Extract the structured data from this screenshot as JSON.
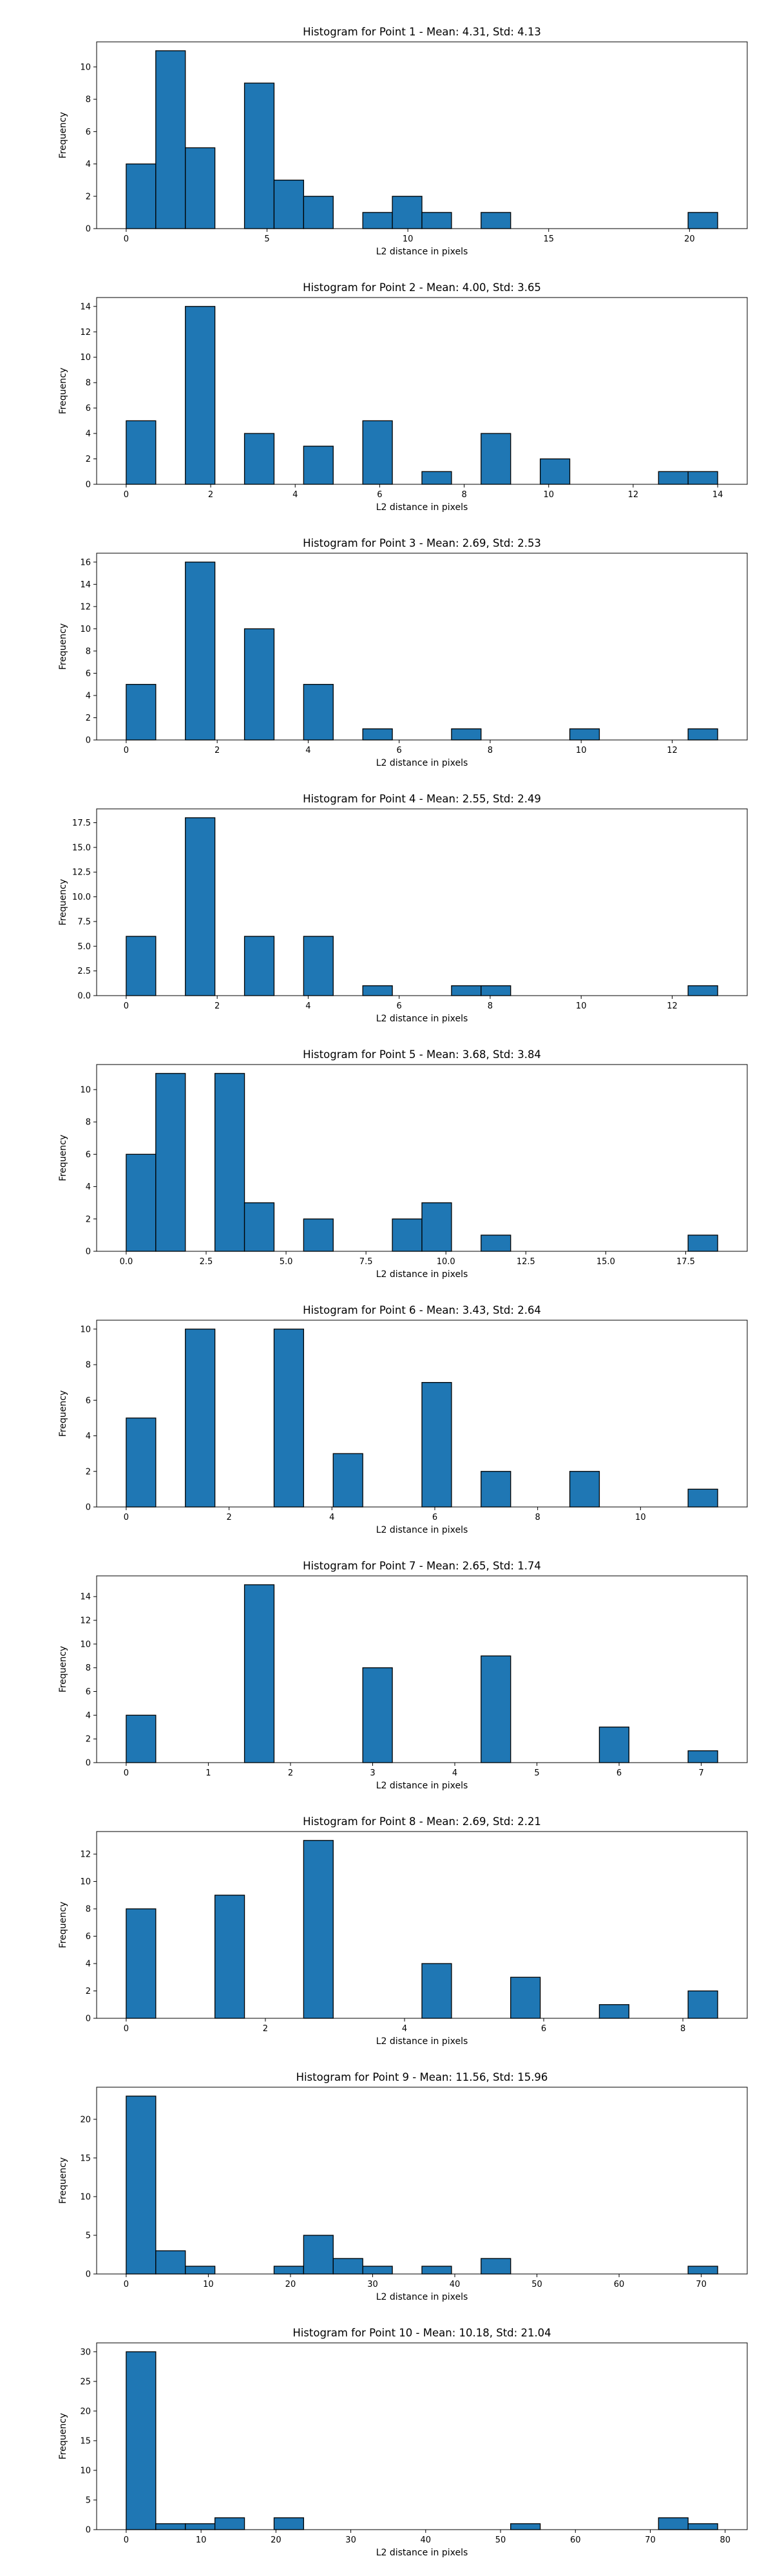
{
  "colors": {
    "bar_fill": "#1f77b4",
    "bar_edge": "#000000"
  },
  "chart_data": [
    {
      "type": "bar",
      "title": "Histogram for Point 1 - Mean: 4.31, Std: 4.13",
      "xlabel": "L2 distance in pixels",
      "ylabel": "Frequency",
      "xlim": [
        -1.05,
        22.05
      ],
      "ylim": [
        0,
        11.55
      ],
      "xticks": [
        {
          "v": 0,
          "label": "0"
        },
        {
          "v": 5,
          "label": "5"
        },
        {
          "v": 10,
          "label": "10"
        },
        {
          "v": 15,
          "label": "15"
        },
        {
          "v": 20,
          "label": "20"
        }
      ],
      "yticks": [
        {
          "v": 0,
          "label": "0"
        },
        {
          "v": 2,
          "label": "2"
        },
        {
          "v": 4,
          "label": "4"
        },
        {
          "v": 6,
          "label": "6"
        },
        {
          "v": 8,
          "label": "8"
        },
        {
          "v": 10,
          "label": "10"
        }
      ],
      "bins": [
        0,
        1.05,
        2.1,
        3.15,
        4.2,
        5.25,
        6.3,
        7.35,
        8.4,
        9.45,
        10.5,
        11.55,
        12.6,
        13.65,
        14.7,
        15.75,
        16.8,
        17.85,
        18.9,
        19.95,
        21.0
      ],
      "counts": [
        4,
        11,
        5,
        0,
        9,
        3,
        2,
        0,
        1,
        2,
        1,
        0,
        1,
        0,
        0,
        0,
        0,
        0,
        0,
        1
      ]
    },
    {
      "type": "bar",
      "title": "Histogram for Point 2 - Mean: 4.00, Std: 3.65",
      "xlabel": "L2 distance in pixels",
      "ylabel": "Frequency",
      "xlim": [
        -0.7,
        14.7
      ],
      "ylim": [
        0,
        14.7
      ],
      "xticks": [
        {
          "v": 0,
          "label": "0"
        },
        {
          "v": 2,
          "label": "2"
        },
        {
          "v": 4,
          "label": "4"
        },
        {
          "v": 6,
          "label": "6"
        },
        {
          "v": 8,
          "label": "8"
        },
        {
          "v": 10,
          "label": "10"
        },
        {
          "v": 12,
          "label": "12"
        },
        {
          "v": 14,
          "label": "14"
        }
      ],
      "yticks": [
        {
          "v": 0,
          "label": "0"
        },
        {
          "v": 2,
          "label": "2"
        },
        {
          "v": 4,
          "label": "4"
        },
        {
          "v": 6,
          "label": "6"
        },
        {
          "v": 8,
          "label": "8"
        },
        {
          "v": 10,
          "label": "10"
        },
        {
          "v": 12,
          "label": "12"
        },
        {
          "v": 14,
          "label": "14"
        }
      ],
      "bins": [
        0,
        0.7,
        1.4,
        2.1,
        2.8,
        3.5,
        4.2,
        4.9,
        5.6,
        6.3,
        7.0,
        7.7,
        8.4,
        9.1,
        9.8,
        10.5,
        11.2,
        11.9,
        12.6,
        13.3,
        14.0
      ],
      "counts": [
        5,
        0,
        14,
        0,
        4,
        0,
        3,
        0,
        5,
        0,
        1,
        0,
        4,
        0,
        2,
        0,
        0,
        0,
        1,
        1
      ]
    },
    {
      "type": "bar",
      "title": "Histogram for Point 3 - Mean: 2.69, Std: 2.53",
      "xlabel": "L2 distance in pixels",
      "ylabel": "Frequency",
      "xlim": [
        -0.65,
        13.65
      ],
      "ylim": [
        0,
        16.8
      ],
      "xticks": [
        {
          "v": 0,
          "label": "0"
        },
        {
          "v": 2,
          "label": "2"
        },
        {
          "v": 4,
          "label": "4"
        },
        {
          "v": 6,
          "label": "6"
        },
        {
          "v": 8,
          "label": "8"
        },
        {
          "v": 10,
          "label": "10"
        },
        {
          "v": 12,
          "label": "12"
        }
      ],
      "yticks": [
        {
          "v": 0,
          "label": "0"
        },
        {
          "v": 2,
          "label": "2"
        },
        {
          "v": 4,
          "label": "4"
        },
        {
          "v": 6,
          "label": "6"
        },
        {
          "v": 8,
          "label": "8"
        },
        {
          "v": 10,
          "label": "10"
        },
        {
          "v": 12,
          "label": "12"
        },
        {
          "v": 14,
          "label": "14"
        },
        {
          "v": 16,
          "label": "16"
        }
      ],
      "bins": [
        0,
        0.65,
        1.3,
        1.95,
        2.6,
        3.25,
        3.9,
        4.55,
        5.2,
        5.85,
        6.5,
        7.15,
        7.8,
        8.45,
        9.1,
        9.75,
        10.4,
        11.05,
        11.7,
        12.35,
        13.0
      ],
      "counts": [
        5,
        0,
        16,
        0,
        10,
        0,
        5,
        0,
        1,
        0,
        0,
        1,
        0,
        0,
        0,
        1,
        0,
        0,
        0,
        1
      ]
    },
    {
      "type": "bar",
      "title": "Histogram for Point 4 - Mean: 2.55, Std: 2.49",
      "xlabel": "L2 distance in pixels",
      "ylabel": "Frequency",
      "xlim": [
        -0.65,
        13.65
      ],
      "ylim": [
        0,
        18.9
      ],
      "xticks": [
        {
          "v": 0,
          "label": "0"
        },
        {
          "v": 2,
          "label": "2"
        },
        {
          "v": 4,
          "label": "4"
        },
        {
          "v": 6,
          "label": "6"
        },
        {
          "v": 8,
          "label": "8"
        },
        {
          "v": 10,
          "label": "10"
        },
        {
          "v": 12,
          "label": "12"
        }
      ],
      "yticks": [
        {
          "v": 0,
          "label": "0.0"
        },
        {
          "v": 2.5,
          "label": "2.5"
        },
        {
          "v": 5,
          "label": "5.0"
        },
        {
          "v": 7.5,
          "label": "7.5"
        },
        {
          "v": 10,
          "label": "10.0"
        },
        {
          "v": 12.5,
          "label": "12.5"
        },
        {
          "v": 15,
          "label": "15.0"
        },
        {
          "v": 17.5,
          "label": "17.5"
        }
      ],
      "bins": [
        0,
        0.65,
        1.3,
        1.95,
        2.6,
        3.25,
        3.9,
        4.55,
        5.2,
        5.85,
        6.5,
        7.15,
        7.8,
        8.45,
        9.1,
        9.75,
        10.4,
        11.05,
        11.7,
        12.35,
        13.0
      ],
      "counts": [
        6,
        0,
        18,
        0,
        6,
        0,
        6,
        0,
        1,
        0,
        0,
        1,
        1,
        0,
        0,
        0,
        0,
        0,
        0,
        1
      ]
    },
    {
      "type": "bar",
      "title": "Histogram for Point 5 - Mean: 3.68, Std: 3.84",
      "xlabel": "L2 distance in pixels",
      "ylabel": "Frequency",
      "xlim": [
        -0.925,
        19.425
      ],
      "ylim": [
        0,
        11.55
      ],
      "xticks": [
        {
          "v": 0,
          "label": "0.0"
        },
        {
          "v": 2.5,
          "label": "2.5"
        },
        {
          "v": 5,
          "label": "5.0"
        },
        {
          "v": 7.5,
          "label": "7.5"
        },
        {
          "v": 10,
          "label": "10.0"
        },
        {
          "v": 12.5,
          "label": "12.5"
        },
        {
          "v": 15,
          "label": "15.0"
        },
        {
          "v": 17.5,
          "label": "17.5"
        }
      ],
      "yticks": [
        {
          "v": 0,
          "label": "0"
        },
        {
          "v": 2,
          "label": "2"
        },
        {
          "v": 4,
          "label": "4"
        },
        {
          "v": 6,
          "label": "6"
        },
        {
          "v": 8,
          "label": "8"
        },
        {
          "v": 10,
          "label": "10"
        }
      ],
      "bins": [
        0,
        0.925,
        1.85,
        2.775,
        3.7,
        4.625,
        5.55,
        6.475,
        7.4,
        8.325,
        9.25,
        10.175,
        11.1,
        12.025,
        12.95,
        13.875,
        14.8,
        15.725,
        16.65,
        17.575,
        18.5
      ],
      "counts": [
        6,
        11,
        0,
        11,
        3,
        0,
        2,
        0,
        0,
        2,
        3,
        0,
        1,
        0,
        0,
        0,
        0,
        0,
        0,
        1
      ]
    },
    {
      "type": "bar",
      "title": "Histogram for Point 6 - Mean: 3.43, Std: 2.64",
      "xlabel": "L2 distance in pixels",
      "ylabel": "Frequency",
      "xlim": [
        -0.575,
        12.075
      ],
      "ylim": [
        0,
        10.5
      ],
      "xticks": [
        {
          "v": 0,
          "label": "0"
        },
        {
          "v": 2,
          "label": "2"
        },
        {
          "v": 4,
          "label": "4"
        },
        {
          "v": 6,
          "label": "6"
        },
        {
          "v": 8,
          "label": "8"
        },
        {
          "v": 10,
          "label": "10"
        }
      ],
      "yticks": [
        {
          "v": 0,
          "label": "0"
        },
        {
          "v": 2,
          "label": "2"
        },
        {
          "v": 4,
          "label": "4"
        },
        {
          "v": 6,
          "label": "6"
        },
        {
          "v": 8,
          "label": "8"
        },
        {
          "v": 10,
          "label": "10"
        }
      ],
      "bins": [
        0,
        0.575,
        1.15,
        1.725,
        2.3,
        2.875,
        3.45,
        4.025,
        4.6,
        5.175,
        5.75,
        6.325,
        6.9,
        7.475,
        8.05,
        8.625,
        9.2,
        9.775,
        10.35,
        10.925,
        11.5
      ],
      "counts": [
        5,
        0,
        10,
        0,
        0,
        10,
        0,
        3,
        0,
        0,
        7,
        0,
        2,
        0,
        0,
        2,
        0,
        0,
        0,
        1
      ]
    },
    {
      "type": "bar",
      "title": "Histogram for Point 7 - Mean: 2.65, Std: 1.74",
      "xlabel": "L2 distance in pixels",
      "ylabel": "Frequency",
      "xlim": [
        -0.36,
        7.56
      ],
      "ylim": [
        0,
        15.75
      ],
      "xticks": [
        {
          "v": 0,
          "label": "0"
        },
        {
          "v": 1,
          "label": "1"
        },
        {
          "v": 2,
          "label": "2"
        },
        {
          "v": 3,
          "label": "3"
        },
        {
          "v": 4,
          "label": "4"
        },
        {
          "v": 5,
          "label": "5"
        },
        {
          "v": 6,
          "label": "6"
        },
        {
          "v": 7,
          "label": "7"
        }
      ],
      "yticks": [
        {
          "v": 0,
          "label": "0"
        },
        {
          "v": 2,
          "label": "2"
        },
        {
          "v": 4,
          "label": "4"
        },
        {
          "v": 6,
          "label": "6"
        },
        {
          "v": 8,
          "label": "8"
        },
        {
          "v": 10,
          "label": "10"
        },
        {
          "v": 12,
          "label": "12"
        },
        {
          "v": 14,
          "label": "14"
        }
      ],
      "bins": [
        0,
        0.36,
        0.72,
        1.08,
        1.44,
        1.8,
        2.16,
        2.52,
        2.88,
        3.24,
        3.6,
        3.96,
        4.32,
        4.68,
        5.04,
        5.4,
        5.76,
        6.12,
        6.48,
        6.84,
        7.2
      ],
      "counts": [
        4,
        0,
        0,
        0,
        15,
        0,
        0,
        0,
        8,
        0,
        0,
        0,
        9,
        0,
        0,
        0,
        3,
        0,
        0,
        1
      ]
    },
    {
      "type": "bar",
      "title": "Histogram for Point 8 - Mean: 2.69, Std: 2.21",
      "xlabel": "L2 distance in pixels",
      "ylabel": "Frequency",
      "xlim": [
        -0.425,
        8.925
      ],
      "ylim": [
        0,
        13.65
      ],
      "xticks": [
        {
          "v": 0,
          "label": "0"
        },
        {
          "v": 2,
          "label": "2"
        },
        {
          "v": 4,
          "label": "4"
        },
        {
          "v": 6,
          "label": "6"
        },
        {
          "v": 8,
          "label": "8"
        }
      ],
      "yticks": [
        {
          "v": 0,
          "label": "0"
        },
        {
          "v": 2,
          "label": "2"
        },
        {
          "v": 4,
          "label": "4"
        },
        {
          "v": 6,
          "label": "6"
        },
        {
          "v": 8,
          "label": "8"
        },
        {
          "v": 10,
          "label": "10"
        },
        {
          "v": 12,
          "label": "12"
        }
      ],
      "bins": [
        0,
        0.425,
        0.85,
        1.275,
        1.7,
        2.125,
        2.55,
        2.975,
        3.4,
        3.825,
        4.25,
        4.675,
        5.1,
        5.525,
        5.95,
        6.375,
        6.8,
        7.225,
        7.65,
        8.075,
        8.5
      ],
      "counts": [
        8,
        0,
        0,
        9,
        0,
        0,
        13,
        0,
        0,
        0,
        4,
        0,
        0,
        3,
        0,
        0,
        1,
        0,
        0,
        2
      ]
    },
    {
      "type": "bar",
      "title": "Histogram for Point 9 - Mean: 11.56, Std: 15.96",
      "xlabel": "L2 distance in pixels",
      "ylabel": "Frequency",
      "xlim": [
        -3.6,
        75.6
      ],
      "ylim": [
        0,
        24.15
      ],
      "xticks": [
        {
          "v": 0,
          "label": "0"
        },
        {
          "v": 10,
          "label": "10"
        },
        {
          "v": 20,
          "label": "20"
        },
        {
          "v": 30,
          "label": "30"
        },
        {
          "v": 40,
          "label": "40"
        },
        {
          "v": 50,
          "label": "50"
        },
        {
          "v": 60,
          "label": "60"
        },
        {
          "v": 70,
          "label": "70"
        }
      ],
      "yticks": [
        {
          "v": 0,
          "label": "0"
        },
        {
          "v": 5,
          "label": "5"
        },
        {
          "v": 10,
          "label": "10"
        },
        {
          "v": 15,
          "label": "15"
        },
        {
          "v": 20,
          "label": "20"
        }
      ],
      "bins": [
        0,
        3.6,
        7.2,
        10.8,
        14.4,
        18.0,
        21.6,
        25.2,
        28.8,
        32.4,
        36.0,
        39.6,
        43.2,
        46.8,
        50.4,
        54.0,
        57.6,
        61.2,
        64.8,
        68.4,
        72.0
      ],
      "counts": [
        23,
        3,
        1,
        0,
        0,
        1,
        5,
        2,
        1,
        0,
        1,
        0,
        2,
        0,
        0,
        0,
        0,
        0,
        0,
        1
      ]
    },
    {
      "type": "bar",
      "title": "Histogram for Point 10 - Mean: 10.18, Std: 21.04",
      "xlabel": "L2 distance in pixels",
      "ylabel": "Frequency",
      "xlim": [
        -3.95,
        82.95
      ],
      "ylim": [
        0,
        31.5
      ],
      "xticks": [
        {
          "v": 0,
          "label": "0"
        },
        {
          "v": 10,
          "label": "10"
        },
        {
          "v": 20,
          "label": "20"
        },
        {
          "v": 30,
          "label": "30"
        },
        {
          "v": 40,
          "label": "40"
        },
        {
          "v": 50,
          "label": "50"
        },
        {
          "v": 60,
          "label": "60"
        },
        {
          "v": 70,
          "label": "70"
        },
        {
          "v": 80,
          "label": "80"
        }
      ],
      "yticks": [
        {
          "v": 0,
          "label": "0"
        },
        {
          "v": 5,
          "label": "5"
        },
        {
          "v": 10,
          "label": "10"
        },
        {
          "v": 15,
          "label": "15"
        },
        {
          "v": 20,
          "label": "20"
        },
        {
          "v": 25,
          "label": "25"
        },
        {
          "v": 30,
          "label": "30"
        }
      ],
      "bins": [
        0,
        3.95,
        7.9,
        11.85,
        15.8,
        19.75,
        23.7,
        27.65,
        31.6,
        35.55,
        39.5,
        43.45,
        47.4,
        51.35,
        55.3,
        59.25,
        63.2,
        67.15,
        71.1,
        75.05,
        79.0
      ],
      "counts": [
        30,
        1,
        1,
        2,
        0,
        2,
        0,
        0,
        0,
        0,
        0,
        0,
        0,
        1,
        0,
        0,
        0,
        0,
        2,
        1
      ]
    }
  ]
}
